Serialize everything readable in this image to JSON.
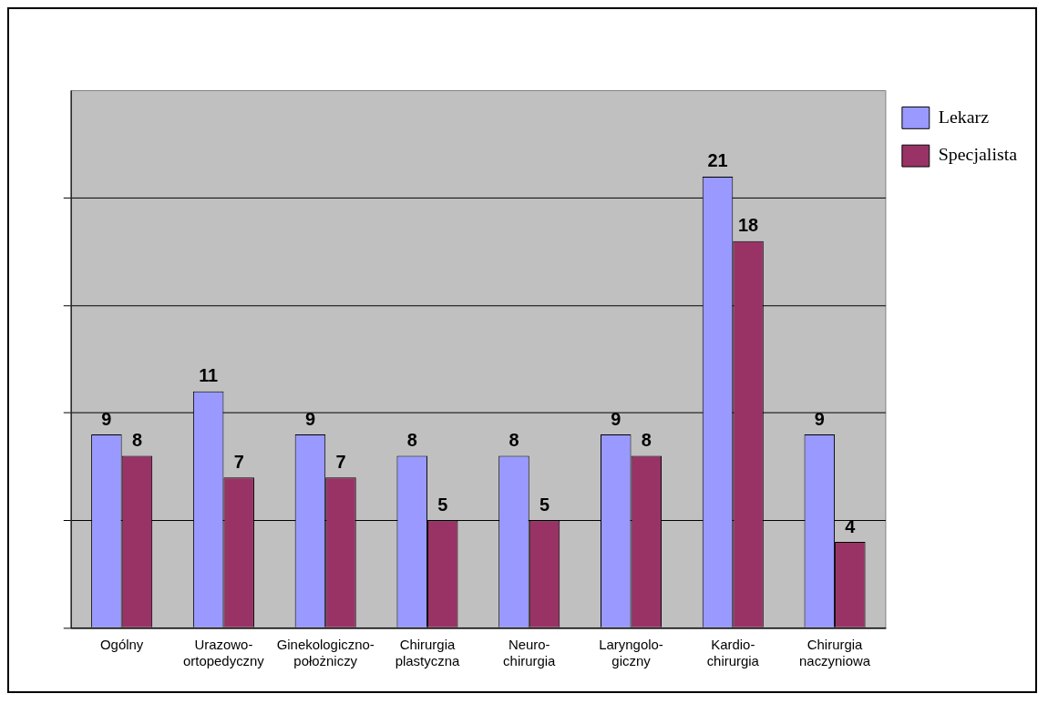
{
  "chart_data": {
    "type": "bar",
    "categories": [
      "Ogólny",
      "Urazowo-ortopedyczny",
      "Ginekologiczno-położniczy",
      "Chirurgia plastyczna",
      "Neuro-chirurgia",
      "Laryngolo-giczny",
      "Kardio-chirurgia",
      "Chirurgia naczyniowa"
    ],
    "series": [
      {
        "name": "Lekarz",
        "color": "#9999ff",
        "values": [
          9,
          11,
          9,
          8,
          8,
          9,
          21,
          9
        ]
      },
      {
        "name": "Specjalista",
        "color": "#993366",
        "values": [
          8,
          7,
          7,
          5,
          5,
          8,
          18,
          4
        ]
      }
    ],
    "ylim": [
      0,
      25
    ],
    "yticks": [
      {
        "value": 0,
        "label": null
      },
      {
        "value": 5,
        "label": null
      },
      {
        "value": 10,
        "label": null
      },
      {
        "value": 15,
        "label": null
      },
      {
        "value": 20,
        "label": null
      }
    ],
    "tick_labels": "x",
    "grid": "y",
    "legend": "top right",
    "data_labels": true
  }
}
